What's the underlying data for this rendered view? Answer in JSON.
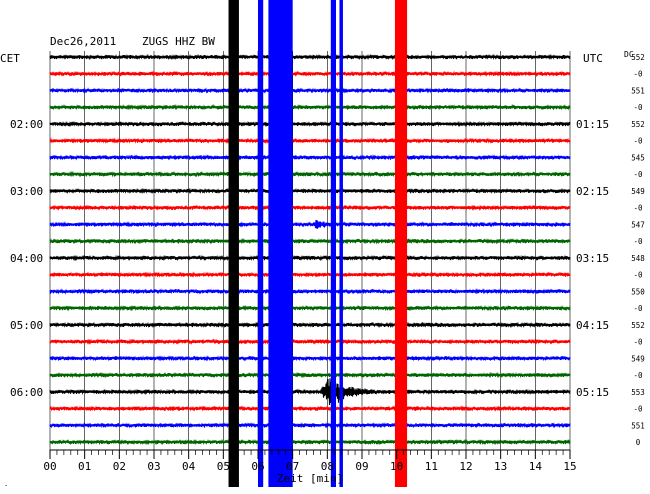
{
  "header": {
    "date": "Dec26,2011",
    "station": "ZUGS HHZ BW"
  },
  "left_timezone": "CET",
  "right_timezone": "UTC",
  "dc_label": "DC",
  "chart_data": {
    "type": "line",
    "description_series": "helicorder: 24 traces of 15 minutes each, traces cycle black/red/blue/green",
    "xlabel": "Zeit [min]",
    "xlim": [
      0,
      15
    ],
    "x_ticks": [
      "00",
      "01",
      "02",
      "03",
      "04",
      "05",
      "06",
      "07",
      "08",
      "09",
      "10",
      "11",
      "12",
      "13",
      "14",
      "15"
    ],
    "trace_colors": [
      "#000000",
      "#ff0000",
      "#0000ff",
      "#006400"
    ],
    "trace_count": 24,
    "left_hour_labels": [
      {
        "trace": 4,
        "label": "02:00"
      },
      {
        "trace": 8,
        "label": "03:00"
      },
      {
        "trace": 12,
        "label": "04:00"
      },
      {
        "trace": 16,
        "label": "05:00"
      },
      {
        "trace": 20,
        "label": "06:00"
      }
    ],
    "right_hour_labels": [
      {
        "trace": 4,
        "label": "01:15"
      },
      {
        "trace": 8,
        "label": "02:15"
      },
      {
        "trace": 12,
        "label": "03:15"
      },
      {
        "trace": 16,
        "label": "04:15"
      },
      {
        "trace": 20,
        "label": "05:15"
      }
    ],
    "dc_values": [
      {
        "trace": 0,
        "label": "552"
      },
      {
        "trace": 1,
        "label": "-0"
      },
      {
        "trace": 2,
        "label": "551"
      },
      {
        "trace": 3,
        "label": "-0"
      },
      {
        "trace": 4,
        "label": "552"
      },
      {
        "trace": 5,
        "label": "-0"
      },
      {
        "trace": 6,
        "label": "545"
      },
      {
        "trace": 7,
        "label": "-0"
      },
      {
        "trace": 8,
        "label": "549"
      },
      {
        "trace": 9,
        "label": "-0"
      },
      {
        "trace": 10,
        "label": "547"
      },
      {
        "trace": 11,
        "label": "-0"
      },
      {
        "trace": 12,
        "label": "548"
      },
      {
        "trace": 13,
        "label": "-0"
      },
      {
        "trace": 14,
        "label": "550"
      },
      {
        "trace": 15,
        "label": "-0"
      },
      {
        "trace": 16,
        "label": "552"
      },
      {
        "trace": 17,
        "label": "-0"
      },
      {
        "trace": 18,
        "label": "549"
      },
      {
        "trace": 19,
        "label": "-0"
      },
      {
        "trace": 20,
        "label": "553"
      },
      {
        "trace": 21,
        "label": "-0"
      },
      {
        "trace": 22,
        "label": "551"
      },
      {
        "trace": 23,
        "label": "0"
      }
    ],
    "spikes": [
      {
        "x_start": 5.15,
        "x_end": 5.45,
        "color": "#000000"
      },
      {
        "x_start": 6.0,
        "x_end": 6.15,
        "color": "#0000ff"
      },
      {
        "x_start": 6.3,
        "x_end": 7.0,
        "color": "#0000ff"
      },
      {
        "x_start": 8.1,
        "x_end": 8.25,
        "color": "#0000ff"
      },
      {
        "x_start": 8.35,
        "x_end": 8.45,
        "color": "#0000ff"
      },
      {
        "x_start": 9.95,
        "x_end": 10.3,
        "color": "#ff0000"
      }
    ],
    "events": [
      {
        "trace": 20,
        "x_start": 7.8,
        "x_end": 9.4,
        "peak_amplitude": 18
      },
      {
        "trace": 10,
        "x_start": 7.6,
        "x_end": 8.2,
        "peak_amplitude": 5
      }
    ]
  }
}
